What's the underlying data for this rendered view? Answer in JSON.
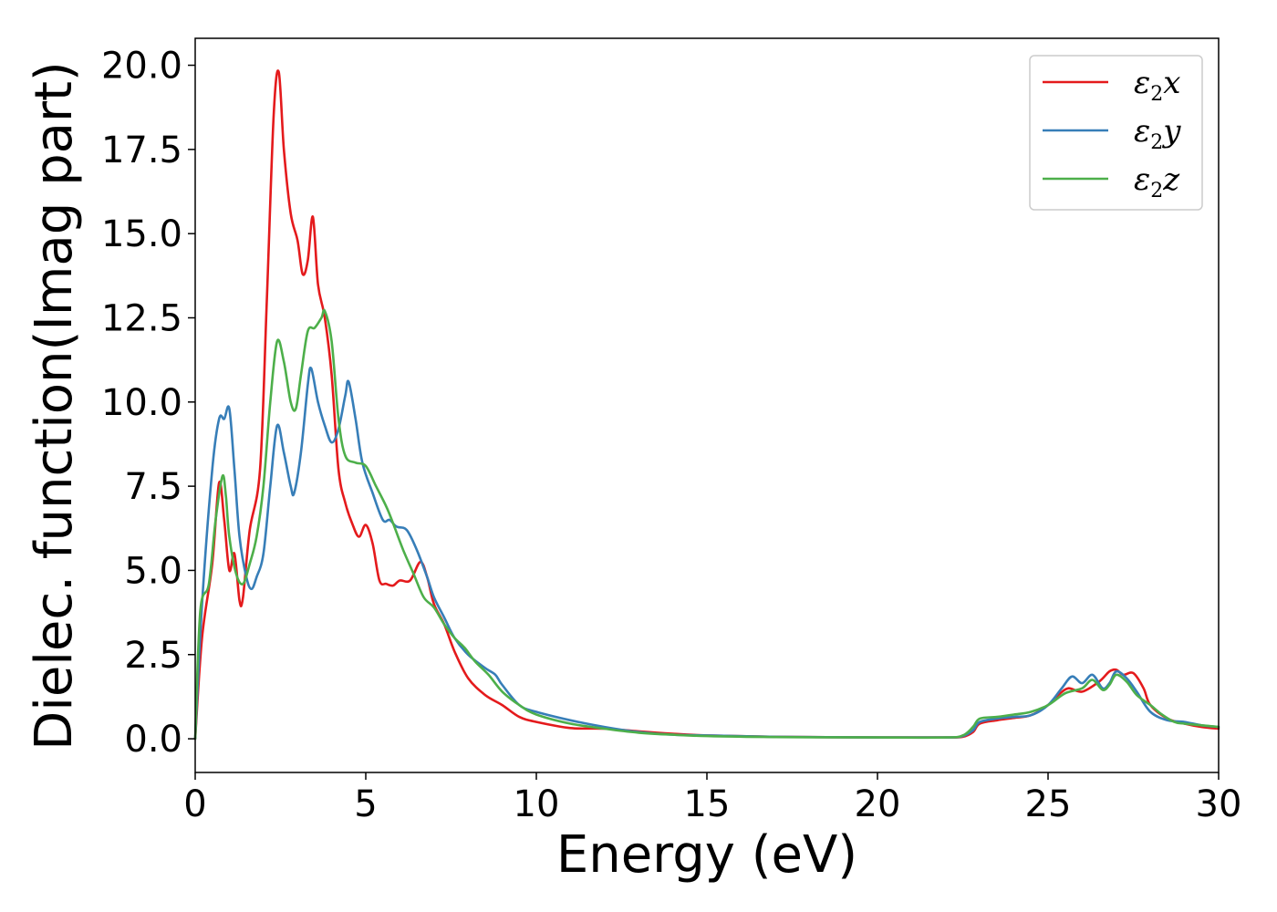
{
  "chart_data": {
    "type": "line",
    "xlabel": "Energy (eV)",
    "ylabel": "Dielec. function(Imag part)",
    "xlim": [
      0,
      30
    ],
    "ylim": [
      -1.0,
      20.8
    ],
    "xticks": [
      0,
      5,
      10,
      15,
      20,
      25,
      30
    ],
    "yticks": [
      0.0,
      2.5,
      5.0,
      7.5,
      10.0,
      12.5,
      15.0,
      17.5,
      20.0
    ],
    "xtick_labels": [
      "0",
      "5",
      "10",
      "15",
      "20",
      "25",
      "30"
    ],
    "ytick_labels": [
      "0.0",
      "2.5",
      "5.0",
      "7.5",
      "10.0",
      "12.5",
      "15.0",
      "17.5",
      "20.0"
    ],
    "grid": false,
    "legend_position": "top-right",
    "series": [
      {
        "name": "ε₂x",
        "legend_main": "ε",
        "legend_sub": "2",
        "legend_var": "x",
        "color": "#e41a1c",
        "points": [
          [
            0,
            0
          ],
          [
            0.2,
            3.0
          ],
          [
            0.5,
            5.2
          ],
          [
            0.7,
            7.6
          ],
          [
            0.85,
            6.5
          ],
          [
            1.0,
            5.0
          ],
          [
            1.15,
            5.5
          ],
          [
            1.3,
            4.1
          ],
          [
            1.4,
            4.2
          ],
          [
            1.6,
            6.2
          ],
          [
            1.9,
            8.0
          ],
          [
            2.1,
            13.0
          ],
          [
            2.3,
            18.5
          ],
          [
            2.45,
            19.8
          ],
          [
            2.6,
            17.5
          ],
          [
            2.8,
            15.6
          ],
          [
            3.0,
            14.8
          ],
          [
            3.15,
            13.8
          ],
          [
            3.3,
            14.2
          ],
          [
            3.45,
            15.5
          ],
          [
            3.6,
            13.5
          ],
          [
            3.8,
            12.5
          ],
          [
            4.0,
            10.8
          ],
          [
            4.2,
            8.0
          ],
          [
            4.4,
            7.0
          ],
          [
            4.6,
            6.4
          ],
          [
            4.8,
            6.0
          ],
          [
            5.0,
            6.35
          ],
          [
            5.2,
            5.8
          ],
          [
            5.4,
            4.7
          ],
          [
            5.6,
            4.6
          ],
          [
            5.8,
            4.55
          ],
          [
            6.0,
            4.7
          ],
          [
            6.3,
            4.7
          ],
          [
            6.6,
            5.25
          ],
          [
            6.8,
            4.8
          ],
          [
            7.0,
            4.0
          ],
          [
            7.3,
            3.4
          ],
          [
            7.6,
            2.6
          ],
          [
            8.0,
            1.8
          ],
          [
            8.5,
            1.3
          ],
          [
            9.0,
            1.0
          ],
          [
            9.5,
            0.65
          ],
          [
            10.0,
            0.5
          ],
          [
            11.0,
            0.32
          ],
          [
            12.0,
            0.3
          ],
          [
            13.0,
            0.22
          ],
          [
            14.0,
            0.15
          ],
          [
            15.0,
            0.1
          ],
          [
            17.0,
            0.06
          ],
          [
            20.0,
            0.04
          ],
          [
            22.0,
            0.04
          ],
          [
            22.5,
            0.06
          ],
          [
            22.8,
            0.2
          ],
          [
            23.0,
            0.45
          ],
          [
            23.5,
            0.55
          ],
          [
            24.0,
            0.62
          ],
          [
            24.5,
            0.7
          ],
          [
            25.0,
            1.0
          ],
          [
            25.3,
            1.3
          ],
          [
            25.6,
            1.5
          ],
          [
            26.0,
            1.4
          ],
          [
            26.5,
            1.7
          ],
          [
            26.8,
            2.0
          ],
          [
            27.0,
            2.05
          ],
          [
            27.2,
            1.9
          ],
          [
            27.5,
            1.95
          ],
          [
            27.8,
            1.5
          ],
          [
            28.0,
            1.0
          ],
          [
            28.5,
            0.6
          ],
          [
            29.0,
            0.45
          ],
          [
            29.5,
            0.35
          ],
          [
            30.0,
            0.3
          ]
        ]
      },
      {
        "name": "ε₂y",
        "legend_main": "ε",
        "legend_sub": "2",
        "legend_var": "y",
        "color": "#377eb8",
        "points": [
          [
            0,
            0
          ],
          [
            0.2,
            4.0
          ],
          [
            0.5,
            8.0
          ],
          [
            0.7,
            9.5
          ],
          [
            0.85,
            9.5
          ],
          [
            1.0,
            9.8
          ],
          [
            1.15,
            8.0
          ],
          [
            1.3,
            6.0
          ],
          [
            1.5,
            4.8
          ],
          [
            1.65,
            4.45
          ],
          [
            1.8,
            4.8
          ],
          [
            2.0,
            5.5
          ],
          [
            2.2,
            7.5
          ],
          [
            2.4,
            9.3
          ],
          [
            2.6,
            8.5
          ],
          [
            2.8,
            7.5
          ],
          [
            2.9,
            7.3
          ],
          [
            3.1,
            8.5
          ],
          [
            3.3,
            10.5
          ],
          [
            3.4,
            11.0
          ],
          [
            3.6,
            10.0
          ],
          [
            3.8,
            9.3
          ],
          [
            4.0,
            8.8
          ],
          [
            4.2,
            9.2
          ],
          [
            4.4,
            10.2
          ],
          [
            4.5,
            10.6
          ],
          [
            4.7,
            9.5
          ],
          [
            4.9,
            8.2
          ],
          [
            5.2,
            7.3
          ],
          [
            5.5,
            6.5
          ],
          [
            5.7,
            6.5
          ],
          [
            5.9,
            6.3
          ],
          [
            6.2,
            6.2
          ],
          [
            6.5,
            5.6
          ],
          [
            6.8,
            4.8
          ],
          [
            7.0,
            4.2
          ],
          [
            7.3,
            3.6
          ],
          [
            7.6,
            3.0
          ],
          [
            8.0,
            2.5
          ],
          [
            8.5,
            2.1
          ],
          [
            8.8,
            1.9
          ],
          [
            9.0,
            1.6
          ],
          [
            9.5,
            1.0
          ],
          [
            10.0,
            0.8
          ],
          [
            11.0,
            0.55
          ],
          [
            12.0,
            0.35
          ],
          [
            13.0,
            0.2
          ],
          [
            14.0,
            0.12
          ],
          [
            15.0,
            0.1
          ],
          [
            17.0,
            0.06
          ],
          [
            20.0,
            0.04
          ],
          [
            22.0,
            0.04
          ],
          [
            22.5,
            0.08
          ],
          [
            22.8,
            0.25
          ],
          [
            23.0,
            0.5
          ],
          [
            23.5,
            0.6
          ],
          [
            24.0,
            0.65
          ],
          [
            24.5,
            0.7
          ],
          [
            25.0,
            1.0
          ],
          [
            25.4,
            1.5
          ],
          [
            25.7,
            1.85
          ],
          [
            26.0,
            1.65
          ],
          [
            26.3,
            1.9
          ],
          [
            26.6,
            1.5
          ],
          [
            26.8,
            1.65
          ],
          [
            27.0,
            2.0
          ],
          [
            27.3,
            1.8
          ],
          [
            27.6,
            1.4
          ],
          [
            28.0,
            0.8
          ],
          [
            28.5,
            0.55
          ],
          [
            29.0,
            0.5
          ],
          [
            29.5,
            0.4
          ],
          [
            30.0,
            0.35
          ]
        ]
      },
      {
        "name": "ε₂z",
        "legend_main": "ε",
        "legend_sub": "2",
        "legend_var": "z",
        "color": "#4daf4a",
        "points": [
          [
            0,
            0
          ],
          [
            0.15,
            3.8
          ],
          [
            0.4,
            4.6
          ],
          [
            0.6,
            6.5
          ],
          [
            0.8,
            7.8
          ],
          [
            0.9,
            7.2
          ],
          [
            1.0,
            6.0
          ],
          [
            1.2,
            4.9
          ],
          [
            1.4,
            4.6
          ],
          [
            1.6,
            5.2
          ],
          [
            1.8,
            6.0
          ],
          [
            2.0,
            7.5
          ],
          [
            2.2,
            10.0
          ],
          [
            2.4,
            11.8
          ],
          [
            2.6,
            11.2
          ],
          [
            2.8,
            10.0
          ],
          [
            2.95,
            9.8
          ],
          [
            3.1,
            10.8
          ],
          [
            3.3,
            12.1
          ],
          [
            3.5,
            12.2
          ],
          [
            3.7,
            12.5
          ],
          [
            3.8,
            12.7
          ],
          [
            4.0,
            11.8
          ],
          [
            4.2,
            9.5
          ],
          [
            4.4,
            8.4
          ],
          [
            4.7,
            8.2
          ],
          [
            5.0,
            8.1
          ],
          [
            5.3,
            7.5
          ],
          [
            5.6,
            6.9
          ],
          [
            5.8,
            6.4
          ],
          [
            6.1,
            5.6
          ],
          [
            6.4,
            4.9
          ],
          [
            6.7,
            4.2
          ],
          [
            7.0,
            3.9
          ],
          [
            7.3,
            3.4
          ],
          [
            7.6,
            3.0
          ],
          [
            7.9,
            2.7
          ],
          [
            8.2,
            2.3
          ],
          [
            8.6,
            1.9
          ],
          [
            9.0,
            1.4
          ],
          [
            9.5,
            1.0
          ],
          [
            10.0,
            0.72
          ],
          [
            11.0,
            0.45
          ],
          [
            12.0,
            0.3
          ],
          [
            13.0,
            0.18
          ],
          [
            14.0,
            0.12
          ],
          [
            15.0,
            0.08
          ],
          [
            17.0,
            0.05
          ],
          [
            20.0,
            0.04
          ],
          [
            22.0,
            0.04
          ],
          [
            22.5,
            0.1
          ],
          [
            22.8,
            0.35
          ],
          [
            23.0,
            0.6
          ],
          [
            23.5,
            0.65
          ],
          [
            24.0,
            0.72
          ],
          [
            24.5,
            0.8
          ],
          [
            25.0,
            1.0
          ],
          [
            25.5,
            1.35
          ],
          [
            26.0,
            1.5
          ],
          [
            26.3,
            1.75
          ],
          [
            26.6,
            1.45
          ],
          [
            26.8,
            1.6
          ],
          [
            27.0,
            1.9
          ],
          [
            27.3,
            1.7
          ],
          [
            27.6,
            1.3
          ],
          [
            28.0,
            1.0
          ],
          [
            28.3,
            0.75
          ],
          [
            28.7,
            0.5
          ],
          [
            29.0,
            0.45
          ],
          [
            29.5,
            0.4
          ],
          [
            30.0,
            0.35
          ]
        ]
      }
    ]
  }
}
